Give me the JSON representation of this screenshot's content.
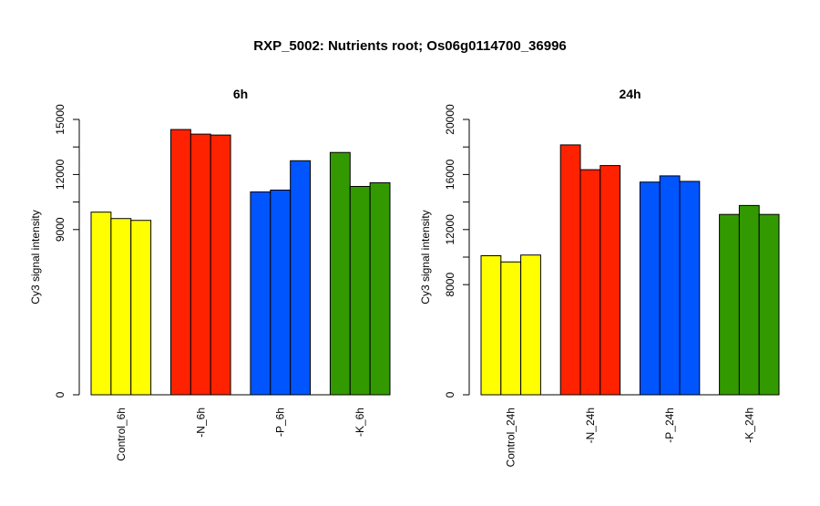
{
  "figure": {
    "title": "RXP_5002: Nutrients root; Os06g0114700_36996"
  },
  "chart_data": [
    {
      "type": "bar",
      "title": "6h",
      "xlabel": "",
      "ylabel": "Cy3 signal intensity",
      "ylim": [
        0,
        15000
      ],
      "yticks": [
        0,
        9000,
        12000,
        15000
      ],
      "categories": [
        "Control_6h",
        "-N_6h",
        "-P_6h",
        "-K_6h"
      ],
      "colors": [
        "#ffff00",
        "#ff2200",
        "#0055ff",
        "#339900"
      ],
      "groups": [
        {
          "category": "Control_6h",
          "values": [
            9950,
            9600,
            9500
          ]
        },
        {
          "category": "-N_6h",
          "values": [
            14450,
            14200,
            14150
          ]
        },
        {
          "category": "-P_6h",
          "values": [
            11050,
            11150,
            12750
          ]
        },
        {
          "category": "-K_6h",
          "values": [
            13200,
            11350,
            11550
          ]
        }
      ]
    },
    {
      "type": "bar",
      "title": "24h",
      "xlabel": "",
      "ylabel": "Cy3 signal intensity",
      "ylim": [
        0,
        20000
      ],
      "yticks": [
        0,
        8000,
        12000,
        16000,
        20000
      ],
      "categories": [
        "Control_24h",
        "-N_24h",
        "-P_24h",
        "-K_24h"
      ],
      "colors": [
        "#ffff00",
        "#ff2200",
        "#0055ff",
        "#339900"
      ],
      "groups": [
        {
          "category": "Control_24h",
          "values": [
            10100,
            9650,
            10150
          ]
        },
        {
          "category": "-N_24h",
          "values": [
            18150,
            16350,
            16650
          ]
        },
        {
          "category": "-P_24h",
          "values": [
            15450,
            15900,
            15500
          ]
        },
        {
          "category": "-K_24h",
          "values": [
            13100,
            13750,
            13100
          ]
        }
      ]
    }
  ]
}
